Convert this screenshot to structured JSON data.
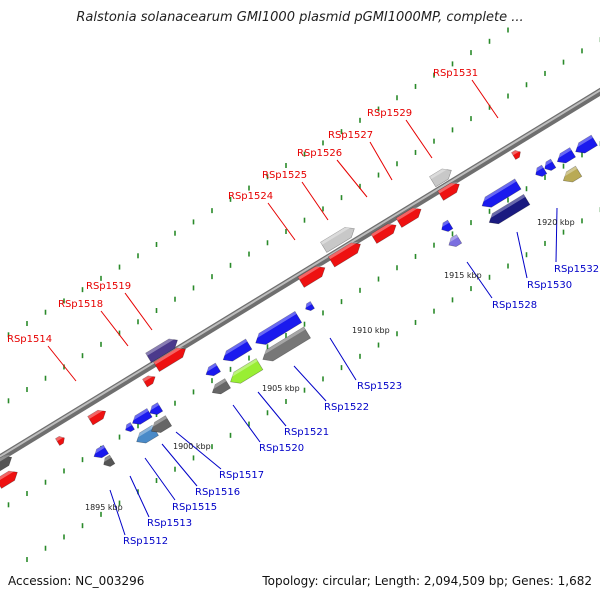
{
  "header": {
    "title": "Ralstonia solanacearum GMI1000 plasmid pGMI1000MP, complete ..."
  },
  "footer": {
    "accession": "Accession: NC_003296",
    "summary": "Topology: circular; Length: 2,094,509 bp; Genes: 1,682"
  },
  "colors": {
    "forward_label": "#e60000",
    "reverse_label": "#0000c8",
    "forward_gene": "#ee1111",
    "reverse_gene": "#1a1aee",
    "backbone": "#8a8a8a",
    "tick": "#2a8a2a"
  },
  "scale_labels": [
    "1895 kbp",
    "1900 kbp",
    "1905 kbp",
    "1910 kbp",
    "1915 kbp",
    "1920 kbp"
  ],
  "forward_labels": [
    "RSp1514",
    "RSp1518",
    "RSp1519",
    "RSp1524",
    "RSp1525",
    "RSp1526",
    "RSp1527",
    "RSp1529",
    "RSp1531"
  ],
  "reverse_labels": [
    "RSp1512",
    "RSp1513",
    "RSp1515",
    "RSp1516",
    "RSp1517",
    "RSp1520",
    "RSp1521",
    "RSp1522",
    "RSp1523",
    "RSp1528",
    "RSp1530",
    "RSp1532"
  ]
}
